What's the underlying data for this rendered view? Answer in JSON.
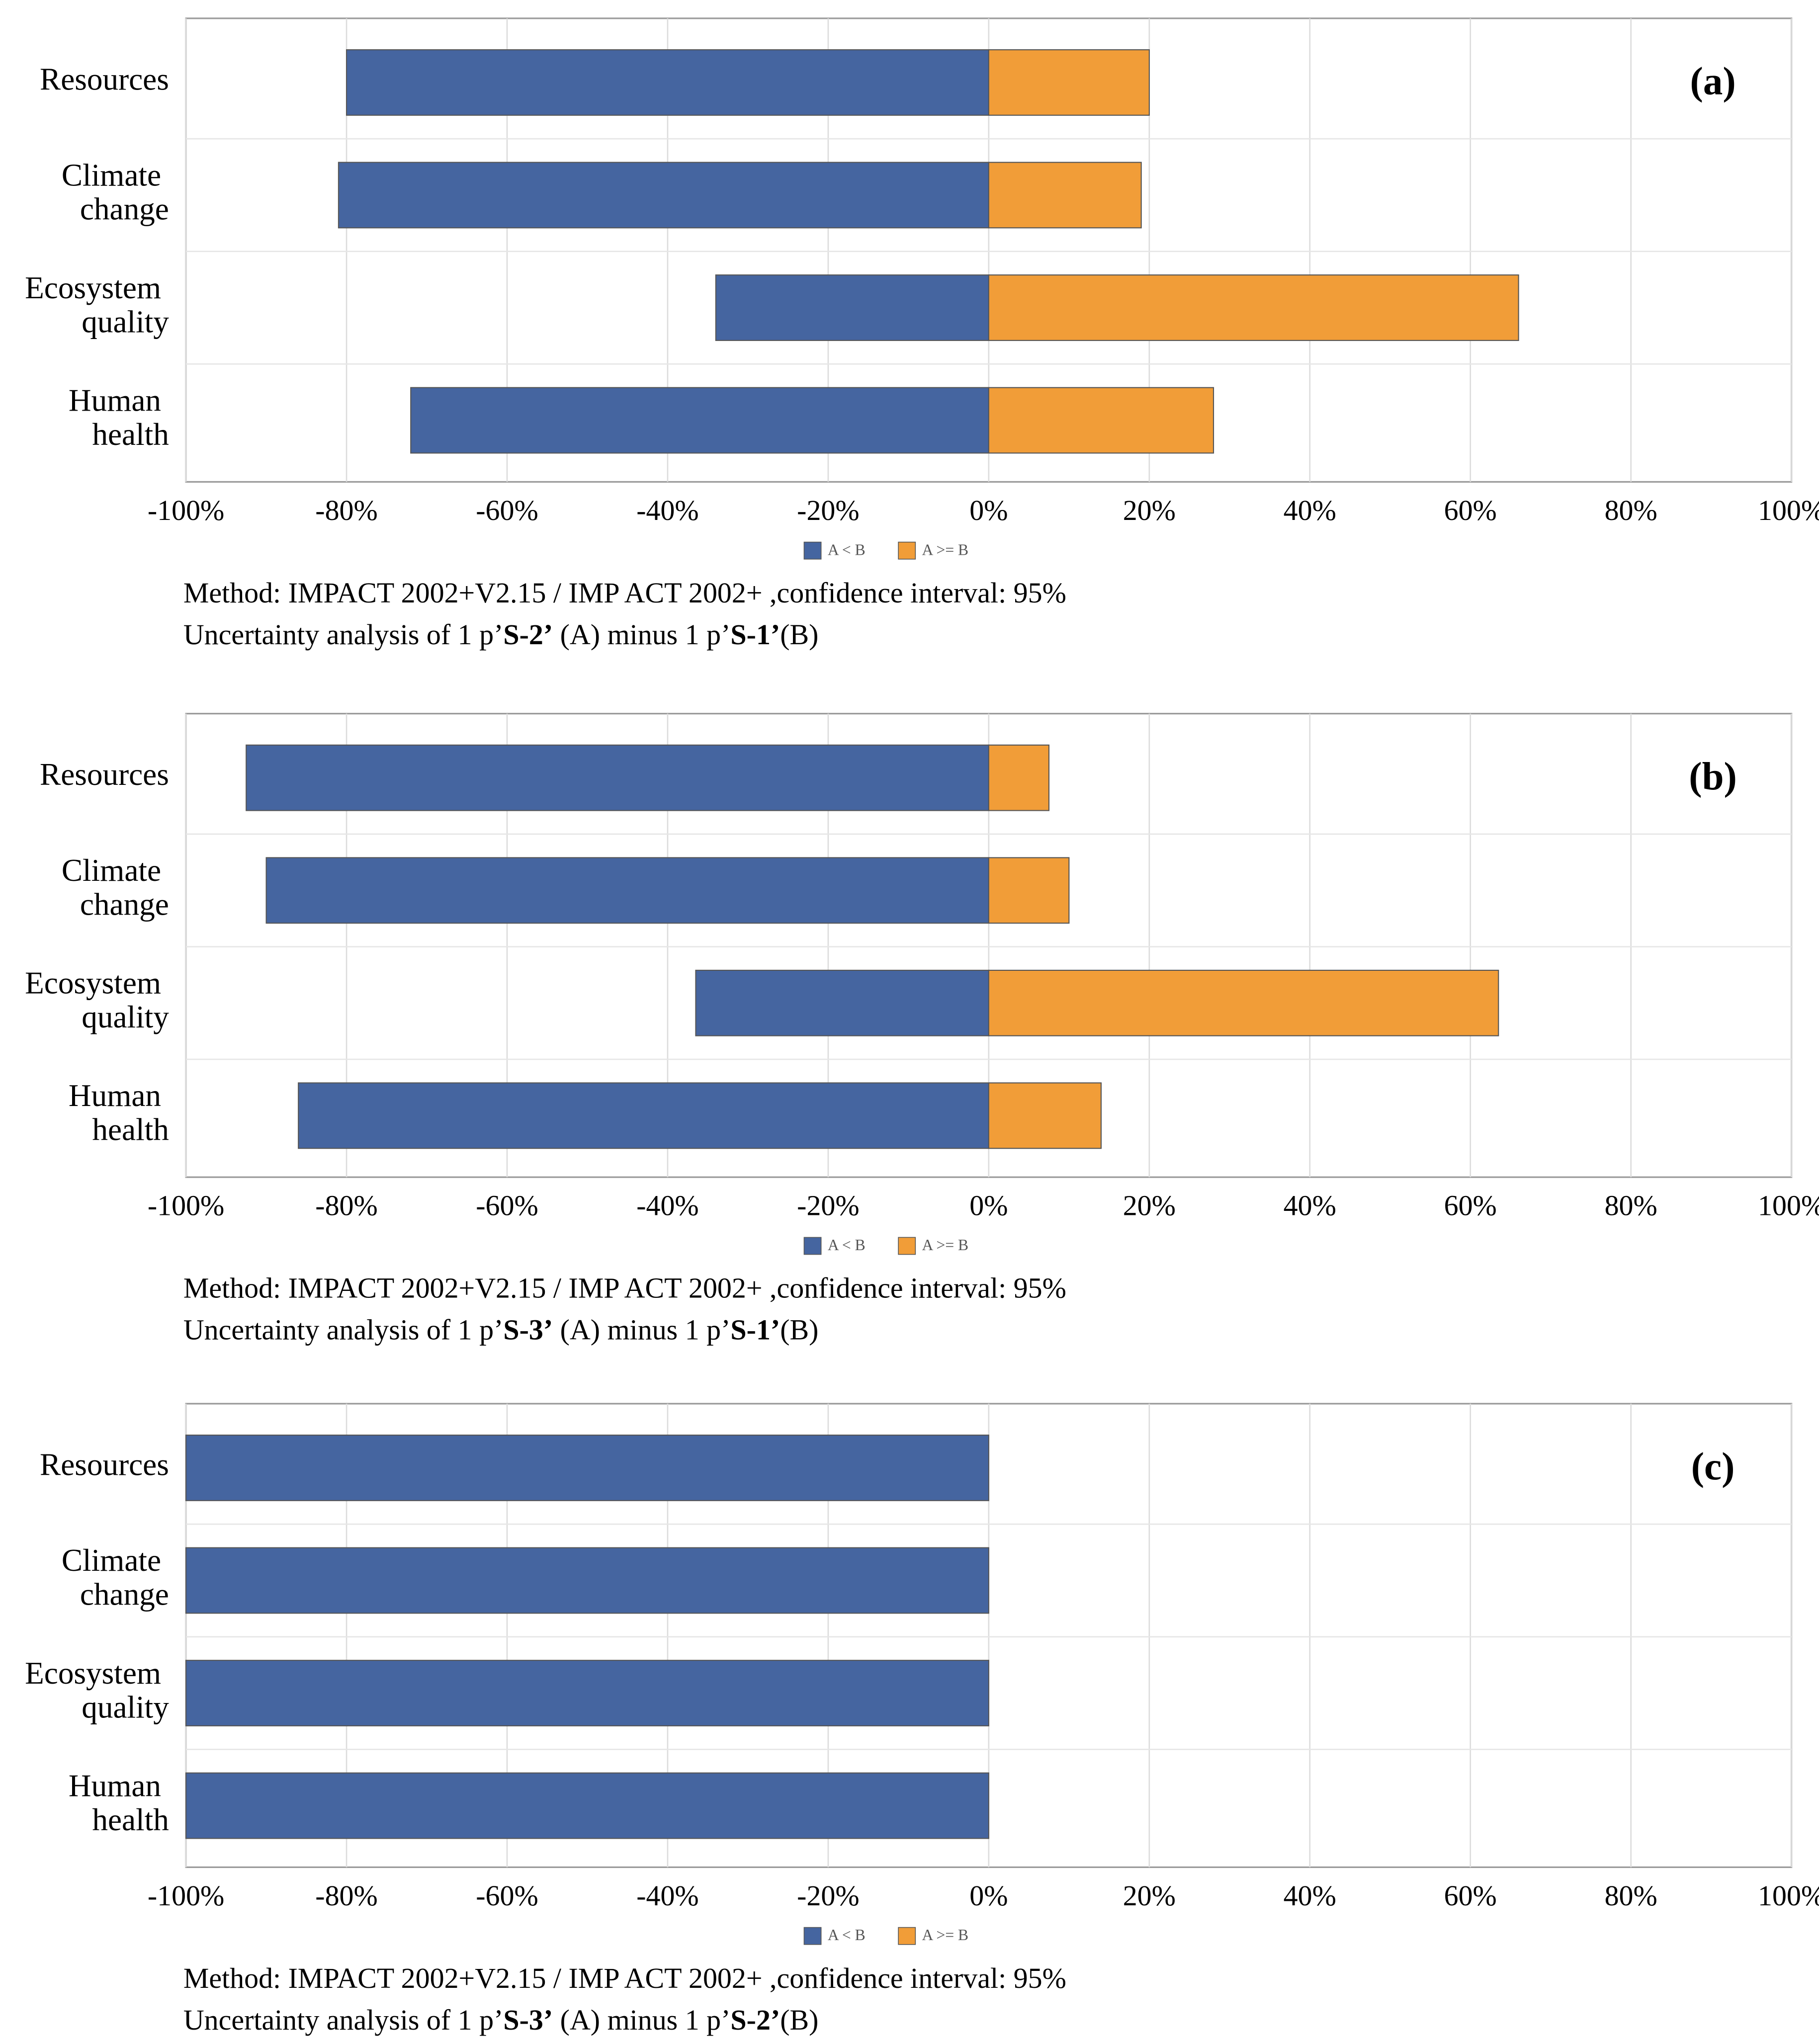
{
  "chart_data": [
    {
      "type": "bar",
      "orientation": "horizontal",
      "title": "(a)",
      "categories": [
        "Resources",
        "Climate change",
        "Ecosystem quality",
        "Human health"
      ],
      "series": [
        {
          "name": "A < B",
          "color": "#4565a0",
          "values": [
            -80,
            -81,
            -34,
            -72
          ]
        },
        {
          "name": "A >= B",
          "color": "#f19d38",
          "values": [
            20,
            19,
            66,
            28
          ]
        }
      ],
      "xlim": [
        -100,
        100
      ],
      "xticks": [
        {
          "value": -100,
          "label": "-100%"
        },
        {
          "value": -80,
          "label": "-80%"
        },
        {
          "value": -60,
          "label": "-60%"
        },
        {
          "value": -40,
          "label": "-40%"
        },
        {
          "value": -20,
          "label": "-20%"
        },
        {
          "value": 0,
          "label": "0%"
        },
        {
          "value": 20,
          "label": "20%"
        },
        {
          "value": 40,
          "label": "40%"
        },
        {
          "value": 60,
          "label": "60%"
        },
        {
          "value": 80,
          "label": "80%"
        },
        {
          "value": 100,
          "label": "100%"
        }
      ],
      "grid": true,
      "method": "Method: IMPACT 2002+V2.15 / IMP ACT 2002+ ,confidence interval: 95%",
      "caption": [
        "Uncertainty analysis of 1 p’",
        "S-2’",
        " (A) minus 1 p’",
        "S-1’",
        "(B)"
      ]
    },
    {
      "type": "bar",
      "orientation": "horizontal",
      "title": "(b)",
      "categories": [
        "Resources",
        "Climate change",
        "Ecosystem quality",
        "Human health"
      ],
      "series": [
        {
          "name": "A < B",
          "color": "#4565a0",
          "values": [
            -92.5,
            -90,
            -36.5,
            -86
          ]
        },
        {
          "name": "A >= B",
          "color": "#f19d38",
          "values": [
            7.5,
            10,
            63.5,
            14
          ]
        }
      ],
      "xlim": [
        -100,
        100
      ],
      "xticks": [
        {
          "value": -100,
          "label": "-100%"
        },
        {
          "value": -80,
          "label": "-80%"
        },
        {
          "value": -60,
          "label": "-60%"
        },
        {
          "value": -40,
          "label": "-40%"
        },
        {
          "value": -20,
          "label": "-20%"
        },
        {
          "value": 0,
          "label": "0%"
        },
        {
          "value": 20,
          "label": "20%"
        },
        {
          "value": 40,
          "label": "40%"
        },
        {
          "value": 60,
          "label": "60%"
        },
        {
          "value": 80,
          "label": "80%"
        },
        {
          "value": 100,
          "label": "100%"
        }
      ],
      "grid": true,
      "method": "Method: IMPACT 2002+V2.15 / IMP ACT 2002+ ,confidence interval: 95%",
      "caption": [
        "Uncertainty analysis of 1 p’",
        "S-3’",
        " (A) minus 1 p’",
        "S-1’",
        "(B)"
      ]
    },
    {
      "type": "bar",
      "orientation": "horizontal",
      "title": "(c)",
      "categories": [
        "Resources",
        "Climate change",
        "Ecosystem quality",
        "Human health"
      ],
      "series": [
        {
          "name": "A < B",
          "color": "#4565a0",
          "values": [
            -100,
            -100,
            -100,
            -100
          ]
        },
        {
          "name": "A >= B",
          "color": "#f19d38",
          "values": [
            0,
            0,
            0,
            0
          ]
        }
      ],
      "xlim": [
        -100,
        100
      ],
      "xticks": [
        {
          "value": -100,
          "label": "-100%"
        },
        {
          "value": -80,
          "label": "-80%"
        },
        {
          "value": -60,
          "label": "-60%"
        },
        {
          "value": -40,
          "label": "-40%"
        },
        {
          "value": -20,
          "label": "-20%"
        },
        {
          "value": 0,
          "label": "0%"
        },
        {
          "value": 20,
          "label": "20%"
        },
        {
          "value": 40,
          "label": "40%"
        },
        {
          "value": 60,
          "label": "60%"
        },
        {
          "value": 80,
          "label": "80%"
        },
        {
          "value": 100,
          "label": "100%"
        }
      ],
      "grid": true,
      "method": "Method: IMPACT 2002+V2.15 / IMP ACT 2002+ ,confidence interval: 95%",
      "caption": [
        "Uncertainty analysis of 1 p’",
        "S-3’",
        " (A) minus 1 p’",
        "S-2’",
        "(B)"
      ]
    }
  ]
}
